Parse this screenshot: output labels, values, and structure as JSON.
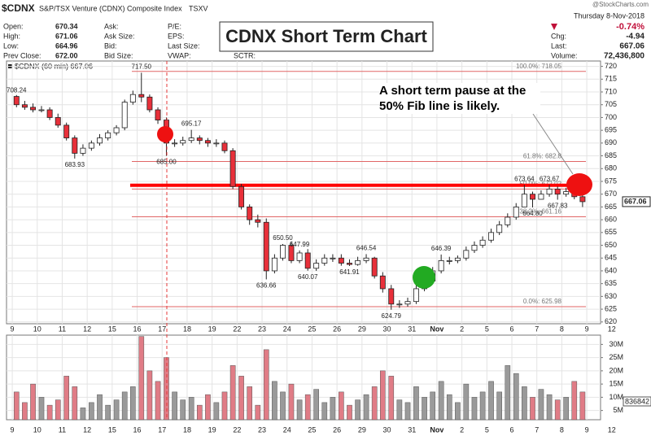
{
  "header": {
    "symbol": "$CDNX",
    "name": "S&P/TSX Venture (CDNX) Composite Index",
    "exchange": "TSXV",
    "source": "@StockCharts.com",
    "date": "Thursday 8-Nov-2018",
    "change_pct": "-0.74%",
    "quote": [
      {
        "label": "Open:",
        "value": "670.34"
      },
      {
        "label": "High:",
        "value": "671.06"
      },
      {
        "label": "Low:",
        "value": "664.96"
      },
      {
        "label": "Prev Close:",
        "value": "672.00"
      }
    ],
    "bid_ask": [
      "Ask:",
      "Ask Size:",
      "Bid:",
      "Bid Size:"
    ],
    "fundamentals": [
      "P/E:",
      "EPS:",
      "Last Size:",
      "VWAP:"
    ],
    "sctr": "SCTR:",
    "summary": [
      {
        "label": "Chg:",
        "value": "-4.94"
      },
      {
        "label": "Last:",
        "value": "667.06"
      },
      {
        "label": "Volume:",
        "value": "72,436,800"
      }
    ],
    "title": "CDNX Short Term Chart",
    "annotation": "A short term pause at the 50% Fib line is likely."
  },
  "chart_data": {
    "type": "candlestick",
    "legend": "$CDNX (60 min) 667.06",
    "x": [
      0.17,
      0.5,
      0.83,
      1.17,
      1.5,
      1.83,
      2.17,
      2.5,
      2.83,
      3.17,
      3.5,
      3.83,
      4.17,
      4.5,
      4.83,
      5.17,
      5.5,
      5.83,
      6.17,
      6.5,
      6.83,
      7.17,
      7.5,
      7.83,
      8.17,
      8.5,
      8.83,
      9.17,
      9.5,
      9.83,
      10.17,
      10.5,
      10.83,
      11.17,
      11.5,
      11.83,
      12.17,
      12.5,
      12.83,
      13.17,
      13.5,
      13.83,
      14.17,
      14.5,
      14.83,
      15.17,
      15.5,
      15.83,
      16.17,
      16.5,
      16.83,
      17.17,
      17.5,
      17.83,
      18.17,
      18.5,
      18.83,
      19.17,
      19.5,
      19.83,
      20.17,
      20.5,
      20.83,
      21.17,
      21.5,
      21.83,
      22.17,
      22.5,
      22.83
    ],
    "open": [
      708.24,
      705,
      704,
      703,
      703,
      700,
      697,
      692,
      686,
      688,
      690,
      692,
      694,
      696,
      706,
      709,
      708,
      703,
      699,
      690,
      690,
      691,
      692,
      691,
      690,
      690,
      687,
      673,
      665,
      660,
      659,
      640,
      645,
      650,
      644,
      647,
      641,
      643,
      645,
      645,
      643,
      642.5,
      644,
      645,
      638,
      633,
      627,
      627,
      628,
      633,
      636,
      640,
      644,
      644,
      645,
      648,
      650,
      652,
      655,
      658,
      661,
      665,
      670,
      668,
      670,
      672,
      670,
      671,
      669
    ],
    "high": [
      708.8,
      706.5,
      705.5,
      704.5,
      704,
      701.5,
      698,
      693,
      689.5,
      691,
      693.5,
      695,
      697,
      707,
      710.5,
      717.5,
      709,
      704,
      700,
      691.5,
      692.5,
      695.17,
      693,
      692,
      691.5,
      691,
      688,
      674,
      666,
      662,
      660.5,
      646.5,
      650.5,
      651.5,
      647.99,
      648.5,
      644.5,
      646.5,
      646.5,
      646.5,
      644.5,
      645.5,
      646.54,
      645.5,
      639.5,
      634.5,
      628.5,
      629.5,
      634.5,
      637.5,
      641.5,
      646.39,
      645.5,
      646,
      649.5,
      651.5,
      653.5,
      656.5,
      659.5,
      662.5,
      666.5,
      673.64,
      671,
      671.5,
      673.67,
      673,
      672.5,
      672,
      670
    ],
    "low": [
      704,
      703,
      702,
      702,
      699,
      696,
      691,
      683.93,
      685,
      687,
      689,
      691,
      693,
      695,
      705,
      706,
      702,
      697.5,
      685,
      688.5,
      689,
      690,
      689.5,
      688.5,
      688.5,
      686,
      672,
      664,
      658,
      657,
      636.66,
      639,
      644,
      643,
      643,
      640.07,
      640,
      642,
      643.5,
      642,
      641.91,
      642,
      643,
      637,
      631.5,
      624.79,
      625.5,
      626,
      627,
      632,
      635,
      639,
      642.5,
      643,
      644,
      647,
      649,
      651,
      654,
      657,
      660,
      665,
      664.8,
      667.9,
      669,
      667.83,
      669,
      668,
      664.96
    ],
    "close": [
      705,
      704,
      703,
      703,
      700,
      697,
      692,
      686,
      688,
      690,
      692,
      694,
      696,
      706,
      709,
      708,
      703,
      699,
      690,
      690,
      691,
      692,
      691,
      690,
      690,
      687,
      673,
      665,
      660,
      659,
      640,
      645,
      650,
      644,
      647,
      641,
      643,
      645,
      645,
      643,
      642.5,
      644,
      645,
      638,
      633,
      627,
      627,
      628,
      633,
      636,
      640,
      644,
      644,
      645,
      648,
      650,
      652,
      655,
      658,
      661,
      665,
      670,
      668,
      670,
      672,
      670,
      671,
      669,
      667.06
    ],
    "volume": [
      12,
      8,
      15,
      10,
      7,
      9,
      18,
      14,
      6,
      8,
      11,
      7,
      9,
      12,
      14,
      33,
      20,
      16,
      25,
      12,
      9,
      10,
      7,
      11,
      8,
      12,
      22,
      18,
      14,
      7,
      28,
      16,
      12,
      15,
      9,
      11,
      13,
      8,
      10,
      12,
      7,
      9,
      11,
      14,
      20,
      18,
      9,
      8,
      14,
      10,
      12,
      16,
      11,
      8,
      15,
      10,
      12,
      16,
      12,
      22,
      19,
      14,
      10,
      13,
      11,
      9,
      10,
      16,
      12
    ],
    "up_color": "#ffffff",
    "down_color": "#e8303a",
    "volume_up_color": "#9a9a9a",
    "volume_down_color": "#e07c86",
    "xlim": [
      -0.23,
      23.55
    ],
    "xticks": [
      {
        "value": 0,
        "label": "9"
      },
      {
        "value": 1,
        "label": "10"
      },
      {
        "value": 2,
        "label": "11"
      },
      {
        "value": 3,
        "label": "12"
      },
      {
        "value": 4,
        "label": "15"
      },
      {
        "value": 5,
        "label": "16"
      },
      {
        "value": 6,
        "label": "17"
      },
      {
        "value": 7,
        "label": "18"
      },
      {
        "value": 8,
        "label": "19"
      },
      {
        "value": 9,
        "label": "22"
      },
      {
        "value": 10,
        "label": "23"
      },
      {
        "value": 11,
        "label": "24"
      },
      {
        "value": 12,
        "label": "25"
      },
      {
        "value": 13,
        "label": "26"
      },
      {
        "value": 14,
        "label": "29"
      },
      {
        "value": 15,
        "label": "30"
      },
      {
        "value": 16,
        "label": "31"
      },
      {
        "value": 17,
        "label": "Nov"
      },
      {
        "value": 18,
        "label": "2"
      },
      {
        "value": 19,
        "label": "5"
      },
      {
        "value": 20,
        "label": "6"
      },
      {
        "value": 21,
        "label": "7"
      },
      {
        "value": 22,
        "label": "8"
      },
      {
        "value": 23,
        "label": "9"
      },
      {
        "value": 24,
        "label": "12"
      }
    ],
    "ylim": [
      619.3,
      722.1
    ],
    "yticks": [
      620,
      625,
      630,
      635,
      640,
      645,
      650,
      655,
      660,
      665,
      670,
      675,
      680,
      685,
      690,
      695,
      700,
      705,
      710,
      715,
      720
    ],
    "volume_ylim": [
      1.5,
      33.5
    ],
    "volume_yticks": [
      {
        "value": 5,
        "label": "5M"
      },
      {
        "value": 10,
        "label": "10M"
      },
      {
        "value": 15,
        "label": "15M"
      },
      {
        "value": 20,
        "label": "20M"
      },
      {
        "value": 25,
        "label": "25M"
      },
      {
        "value": 30,
        "label": "30M"
      }
    ],
    "volume_tag": "836842",
    "grid": true,
    "fib_levels": [
      {
        "value": 718.05,
        "label": "100.0%: 718.05"
      },
      {
        "value": 682.8,
        "label": "61.8%: 682.8"
      },
      {
        "value": 672.02,
        "label": "50.0%: 672.02"
      },
      {
        "value": 661.16,
        "label": "38.2%: 661.16"
      },
      {
        "value": 625.98,
        "label": "0.0%: 625.98"
      }
    ],
    "fib_color": "#e06666",
    "resistance_line": 673.5,
    "resistance_color": "#ff0000",
    "point_labels": [
      {
        "x": 0.17,
        "value": 708.24,
        "label": "708.24"
      },
      {
        "x": 2.5,
        "value": 683.93,
        "label": "683.93"
      },
      {
        "x": 5.17,
        "value": 717.5,
        "label": "717.50"
      },
      {
        "x": 6.17,
        "value": 685,
        "label": "685.00"
      },
      {
        "x": 7.17,
        "value": 695.17,
        "label": "695.17"
      },
      {
        "x": 10.17,
        "value": 636.66,
        "label": "636.66"
      },
      {
        "x": 10.83,
        "value": 650.5,
        "label": "650.50"
      },
      {
        "x": 11.5,
        "value": 647.99,
        "label": "647.99"
      },
      {
        "x": 11.83,
        "value": 640.07,
        "label": "640.07"
      },
      {
        "x": 13.5,
        "value": 641.91,
        "label": "641.91"
      },
      {
        "x": 14.17,
        "value": 646.54,
        "label": "646.54"
      },
      {
        "x": 15.17,
        "value": 624.79,
        "label": "624.79"
      },
      {
        "x": 17.17,
        "value": 646.39,
        "label": "646.39"
      },
      {
        "x": 20.5,
        "value": 673.64,
        "label": "673.64"
      },
      {
        "x": 20.83,
        "value": 664.8,
        "label": "664.80"
      },
      {
        "x": 21.5,
        "value": 673.67,
        "label": "673.67"
      },
      {
        "x": 21.83,
        "value": 667.83,
        "label": "667.83"
      }
    ]
  }
}
